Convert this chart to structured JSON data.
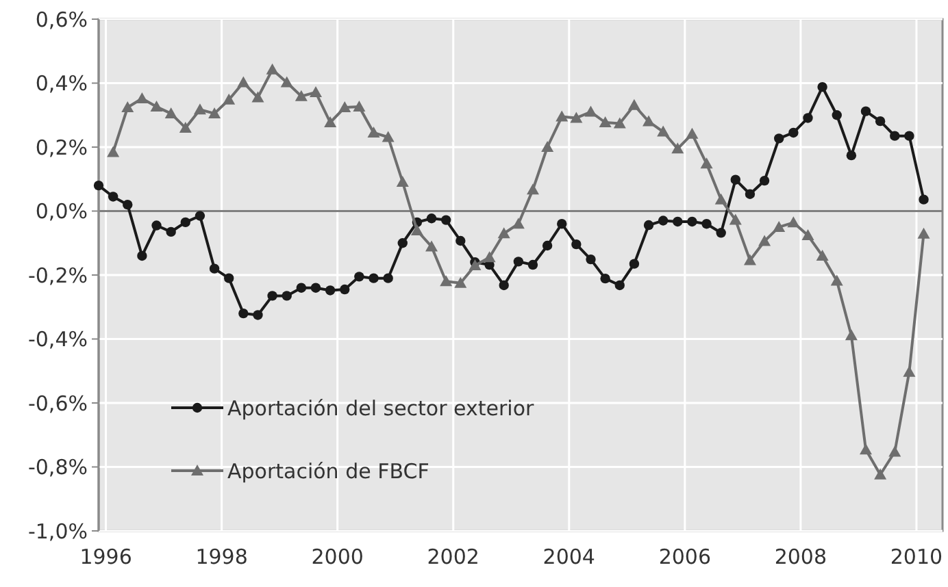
{
  "chart_data": {
    "type": "line",
    "x": [
      1995.875,
      1996.125,
      1996.375,
      1996.625,
      1996.875,
      1997.125,
      1997.375,
      1997.625,
      1997.875,
      1998.125,
      1998.375,
      1998.625,
      1998.875,
      1999.125,
      1999.375,
      1999.625,
      1999.875,
      2000.125,
      2000.375,
      2000.625,
      2000.875,
      2001.125,
      2001.375,
      2001.625,
      2001.875,
      2002.125,
      2002.375,
      2002.625,
      2002.875,
      2003.125,
      2003.375,
      2003.625,
      2003.875,
      2004.125,
      2004.375,
      2004.625,
      2004.875,
      2005.125,
      2005.375,
      2005.625,
      2005.875,
      2006.125,
      2006.375,
      2006.625,
      2006.875,
      2007.125,
      2007.375,
      2007.625,
      2007.875,
      2008.125,
      2008.375,
      2008.625,
      2008.875,
      2009.125,
      2009.375,
      2009.625,
      2009.875,
      2010.125
    ],
    "series": [
      {
        "name": "Aportación del sector exterior",
        "color": "#1a1a1a",
        "marker": "circle",
        "values": [
          0.08,
          0.045,
          0.02,
          -0.14,
          -0.045,
          -0.065,
          -0.035,
          -0.015,
          -0.18,
          -0.21,
          -0.32,
          -0.325,
          -0.265,
          -0.265,
          -0.24,
          -0.24,
          -0.248,
          -0.245,
          -0.205,
          -0.21,
          -0.21,
          -0.1,
          -0.035,
          -0.023,
          -0.028,
          -0.093,
          -0.16,
          -0.168,
          -0.232,
          -0.158,
          -0.168,
          -0.108,
          -0.04,
          -0.104,
          -0.151,
          -0.211,
          -0.232,
          -0.165,
          -0.044,
          -0.03,
          -0.033,
          -0.033,
          -0.04,
          -0.068,
          0.098,
          0.053,
          0.095,
          0.227,
          0.245,
          0.291,
          0.388,
          0.3,
          0.174,
          0.312,
          0.281,
          0.235,
          0.235,
          0.036
        ]
      },
      {
        "name": "Aportación de FBCF",
        "color": "#6e6e6e",
        "marker": "triangle",
        "values": [
          null,
          0.184,
          0.324,
          0.352,
          0.326,
          0.305,
          0.26,
          0.317,
          0.305,
          0.348,
          0.402,
          0.355,
          0.442,
          0.402,
          0.359,
          0.371,
          0.277,
          0.324,
          0.326,
          0.245,
          0.231,
          0.091,
          -0.061,
          -0.111,
          -0.22,
          -0.225,
          -0.17,
          -0.145,
          -0.07,
          -0.04,
          0.067,
          0.2,
          0.295,
          0.291,
          0.31,
          0.277,
          0.274,
          0.331,
          0.28,
          0.248,
          0.195,
          0.241,
          0.148,
          0.036,
          -0.028,
          -0.154,
          -0.094,
          -0.05,
          -0.036,
          -0.076,
          -0.14,
          -0.218,
          -0.389,
          -0.746,
          -0.824,
          -0.753,
          -0.503,
          -0.071
        ]
      }
    ],
    "xlim": [
      1995.875,
      2010.45
    ],
    "xticks": [
      1996,
      1998,
      2000,
      2002,
      2004,
      2006,
      2008,
      2010
    ],
    "ylim": [
      -1.0,
      0.6
    ],
    "yticks": [
      {
        "value": -1.0,
        "label": "-1,0%"
      },
      {
        "value": -0.8,
        "label": "-0,8%"
      },
      {
        "value": -0.6,
        "label": "-0,6%"
      },
      {
        "value": -0.4,
        "label": "-0,4%"
      },
      {
        "value": -0.2,
        "label": "-0,2%"
      },
      {
        "value": 0,
        "label": "0,0%"
      },
      {
        "value": 0.2,
        "label": "0,2%"
      },
      {
        "value": 0.4,
        "label": "0,4%"
      },
      {
        "value": 0.6,
        "label": "0,6%"
      }
    ],
    "ref_lines": [
      {
        "axis": "y",
        "value": 0,
        "color": "#808080"
      }
    ],
    "grid": true,
    "legend": "bottom left",
    "line_style": "solid"
  }
}
